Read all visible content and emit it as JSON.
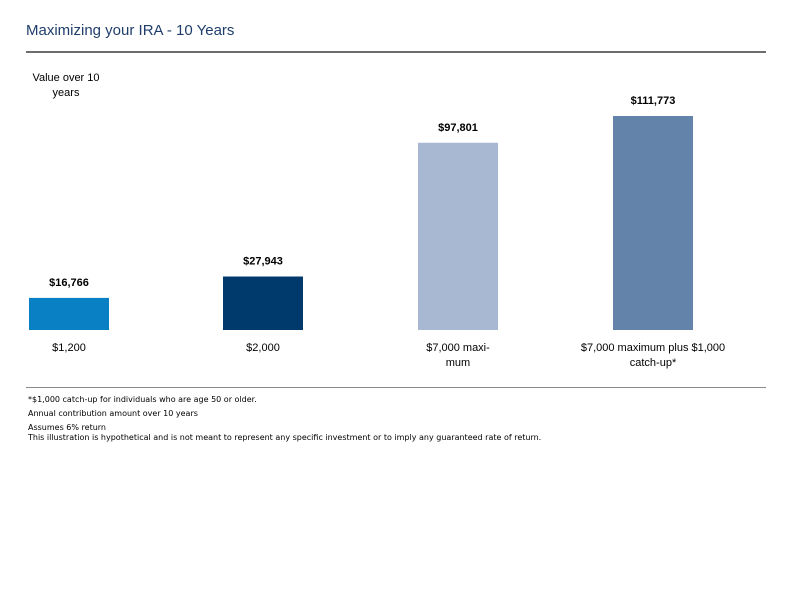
{
  "title": "Maximizing your IRA - 10 Years",
  "chart_data": {
    "type": "bar",
    "ylabel": "Value over 10 years",
    "categories": [
      "$1,200",
      "$2,000",
      "$7,000 maxi-\nmum",
      "$7,000 maximum plus $1,000\ncatch-up*"
    ],
    "values": [
      16766,
      27943,
      97801,
      111773
    ],
    "data_labels": [
      "$16,766",
      "$27,943",
      "$97,801",
      "$111,773"
    ],
    "colors": [
      "#0a80c4",
      "#003a6c",
      "#a8b8d2",
      "#6383ab"
    ],
    "ylim": [
      0,
      111773
    ],
    "grid": false,
    "legend": "none"
  },
  "footnotes": {
    "catchup": "*$1,000 catch-up for individuals who are age 50 or older.",
    "annual": "Annual contribution amount over 10 years",
    "assumes": "Assumes 6% return",
    "disclaimer": "This illustration is hypothetical and is not meant to represent any specific investment or to imply any guaranteed rate of return."
  }
}
